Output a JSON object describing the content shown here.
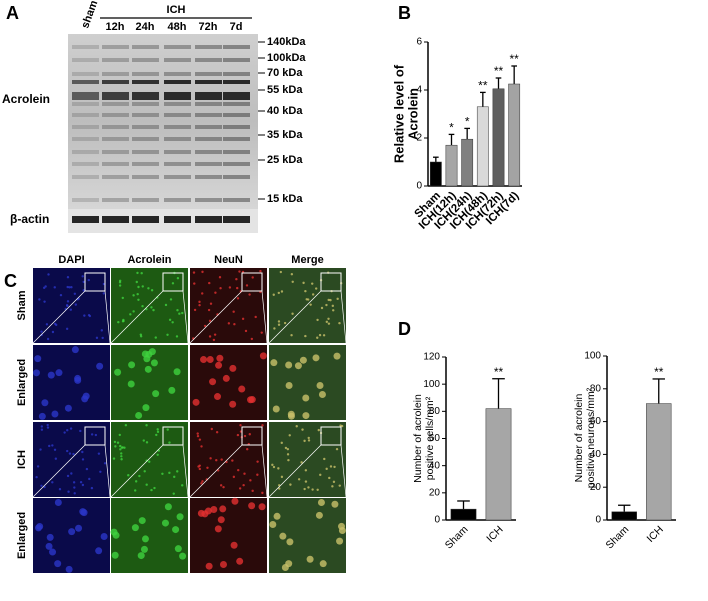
{
  "panel_labels": [
    "A",
    "B",
    "C",
    "D"
  ],
  "blot": {
    "group": "ICH",
    "lanes": [
      "sham",
      "12h",
      "24h",
      "48h",
      "72h",
      "7d"
    ],
    "markers": [
      "140kDa",
      "100kDa",
      "70 kDa",
      "55 kDa",
      "40 kDa",
      "35 kDa",
      "25 kDa",
      "15 kDa"
    ],
    "rows": [
      "Acrolein",
      "β-actin"
    ]
  },
  "micrograph": {
    "columns": [
      "DAPI",
      "Acrolein",
      "NeuN",
      "Merge"
    ],
    "rows": [
      "Sham",
      "Enlarged",
      "ICH",
      "Enlarged"
    ]
  },
  "chart_data": [
    {
      "type": "bar",
      "ylabel": [
        "Relative  level of",
        "Acrolein"
      ],
      "categories": [
        "Sham",
        "ICH(12h)",
        "ICH(24h)",
        "ICH(48h)",
        "ICH(72h)",
        "ICH(7d)"
      ],
      "values": [
        1.0,
        1.7,
        1.95,
        3.3,
        4.05,
        4.25
      ],
      "errors": [
        0.2,
        0.45,
        0.45,
        0.6,
        0.45,
        0.75
      ],
      "colors": [
        "#000000",
        "#a6a6a6",
        "#808080",
        "#d9d9d9",
        "#5f5f5f",
        "#a3a3a3"
      ],
      "annotations": [
        null,
        "*",
        "*",
        "**",
        "**",
        "**"
      ],
      "ylim": [
        0,
        6
      ],
      "yticks": [
        0,
        2,
        4,
        6
      ]
    },
    {
      "type": "bar",
      "ylabel": [
        "Number of acrolein",
        "positive cells/mm²"
      ],
      "categories": [
        "Sham",
        "ICH"
      ],
      "values": [
        8,
        82
      ],
      "errors": [
        6,
        22
      ],
      "colors": [
        "#000000",
        "#a6a6a6"
      ],
      "annotations": [
        null,
        "**"
      ],
      "ylim": [
        0,
        120
      ],
      "yticks": [
        0,
        20,
        40,
        60,
        80,
        100,
        120
      ]
    },
    {
      "type": "bar",
      "ylabel": [
        "Number of acrolein",
        "positive neurons/mm²"
      ],
      "categories": [
        "Sham",
        "ICH"
      ],
      "values": [
        5,
        71
      ],
      "errors": [
        4,
        15
      ],
      "colors": [
        "#000000",
        "#a6a6a6"
      ],
      "annotations": [
        null,
        "**"
      ],
      "ylim": [
        0,
        100
      ],
      "yticks": [
        0,
        20,
        40,
        60,
        80,
        100
      ]
    }
  ]
}
